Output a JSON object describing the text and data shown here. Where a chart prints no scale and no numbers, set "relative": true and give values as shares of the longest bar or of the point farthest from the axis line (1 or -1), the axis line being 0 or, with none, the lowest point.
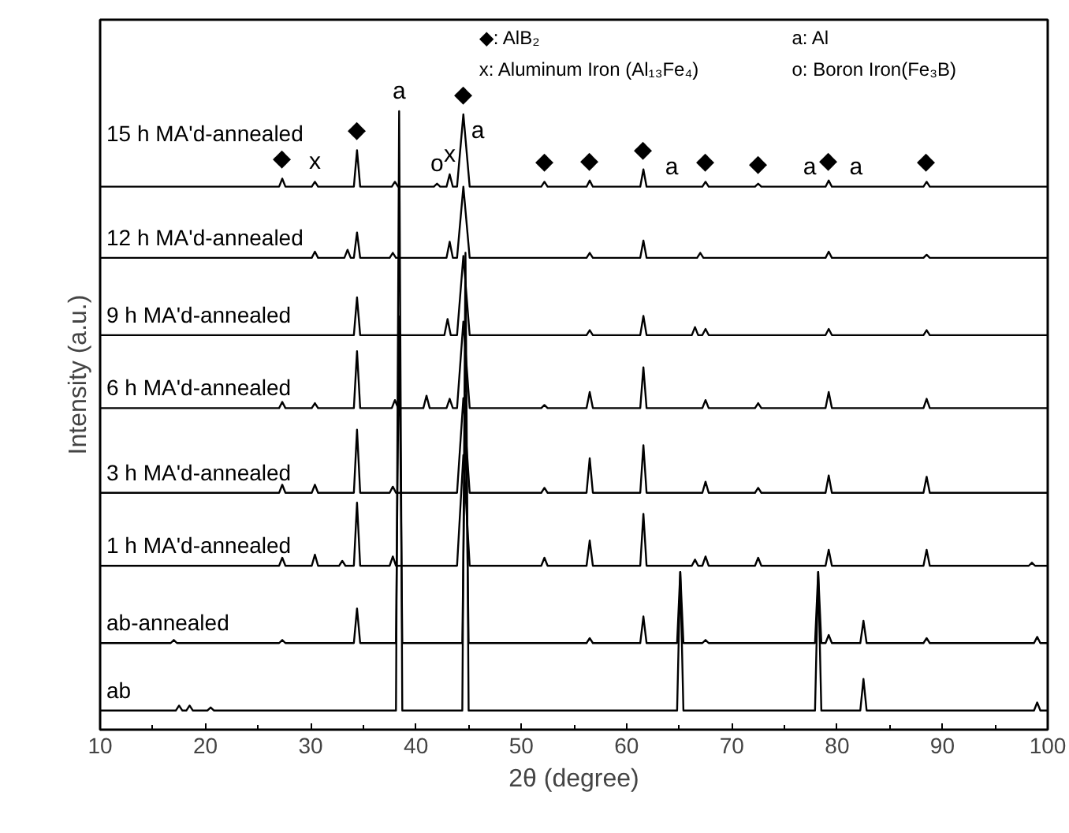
{
  "chart_data": {
    "type": "line",
    "relative": true,
    "xlabel": "2θ (degree)",
    "ylabel": "Intensity (a.u.)",
    "xlim": [
      10,
      100
    ],
    "xticks": [
      10,
      20,
      30,
      40,
      50,
      60,
      70,
      80,
      90,
      100
    ],
    "grid": false,
    "legend": false,
    "marker": "none",
    "line_style": "solid",
    "series": [
      {
        "name": "15 h MA'd-annealed",
        "color": "#000000",
        "x": [
          10,
          27,
          27.3,
          27.6,
          30.1,
          30.4,
          30.7,
          34.1,
          34.4,
          34.7,
          37.7,
          38,
          38.3,
          41.7,
          42,
          42.3,
          42.9,
          43.2,
          43.5,
          43.9,
          44.5,
          45.1,
          51.9,
          52.2,
          52.5,
          56.2,
          56.5,
          56.8,
          61.3,
          61.6,
          61.9,
          67.2,
          67.5,
          67.8,
          72.2,
          72.5,
          72.8,
          78.9,
          79.2,
          79.5,
          88.2,
          88.5,
          88.8,
          100
        ],
        "values": [
          0.878,
          0.878,
          0.891,
          0.878,
          0.878,
          0.886,
          0.878,
          0.878,
          0.937,
          0.878,
          0.878,
          0.886,
          0.878,
          0.878,
          0.883,
          0.878,
          0.878,
          0.898,
          0.878,
          0.878,
          0.995,
          0.878,
          0.878,
          0.886,
          0.878,
          0.878,
          0.888,
          0.878,
          0.878,
          0.906,
          0.878,
          0.878,
          0.886,
          0.878,
          0.878,
          0.883,
          0.878,
          0.878,
          0.888,
          0.878,
          0.878,
          0.886,
          0.878,
          0.878
        ]
      },
      {
        "name": "12 h MA'd-annealed",
        "color": "#000000",
        "x": [
          10,
          30.1,
          30.4,
          30.7,
          33.2,
          33.5,
          33.8,
          34.1,
          34.4,
          34.7,
          37.5,
          37.8,
          38.1,
          42.9,
          43.2,
          43.5,
          43.9,
          44.5,
          45.1,
          56.2,
          56.5,
          56.8,
          61.3,
          61.6,
          61.9,
          66.7,
          67,
          67.3,
          78.9,
          79.2,
          79.5,
          88.2,
          88.5,
          88.8,
          100
        ],
        "values": [
          0.763,
          0.763,
          0.773,
          0.763,
          0.763,
          0.776,
          0.763,
          0.763,
          0.804,
          0.763,
          0.763,
          0.771,
          0.763,
          0.763,
          0.789,
          0.763,
          0.763,
          0.878,
          0.763,
          0.763,
          0.771,
          0.763,
          0.763,
          0.791,
          0.763,
          0.763,
          0.771,
          0.763,
          0.763,
          0.773,
          0.763,
          0.763,
          0.768,
          0.763,
          0.763
        ]
      },
      {
        "name": "9 h MA'd-annealed",
        "color": "#000000",
        "x": [
          10,
          34.1,
          34.4,
          34.7,
          42.7,
          43,
          43.3,
          43.9,
          44.5,
          45.1,
          56.2,
          56.5,
          56.8,
          61.3,
          61.6,
          61.9,
          66.2,
          66.5,
          66.8,
          67.2,
          67.5,
          67.8,
          78.9,
          79.2,
          79.5,
          88.2,
          88.5,
          88.8,
          100
        ],
        "values": [
          0.638,
          0.638,
          0.699,
          0.638,
          0.638,
          0.664,
          0.638,
          0.638,
          0.766,
          0.638,
          0.638,
          0.646,
          0.638,
          0.638,
          0.669,
          0.638,
          0.638,
          0.651,
          0.638,
          0.638,
          0.648,
          0.638,
          0.638,
          0.648,
          0.638,
          0.638,
          0.646,
          0.638,
          0.638
        ]
      },
      {
        "name": "6 h MA'd-annealed",
        "color": "#000000",
        "x": [
          10,
          27,
          27.3,
          27.6,
          30.1,
          30.4,
          30.7,
          34.1,
          34.4,
          34.7,
          37.7,
          38,
          38.3,
          40.7,
          41,
          41.3,
          42.9,
          43.2,
          43.5,
          43.9,
          44.5,
          45.1,
          51.9,
          52.2,
          52.5,
          56.2,
          56.5,
          56.8,
          61.3,
          61.6,
          61.9,
          67.2,
          67.5,
          67.8,
          72.2,
          72.5,
          72.8,
          78.9,
          79.2,
          79.5,
          88.2,
          88.5,
          88.8,
          100
        ],
        "values": [
          0.52,
          0.52,
          0.53,
          0.52,
          0.52,
          0.528,
          0.52,
          0.52,
          0.612,
          0.52,
          0.52,
          0.533,
          0.52,
          0.52,
          0.54,
          0.52,
          0.52,
          0.535,
          0.52,
          0.52,
          0.66,
          0.52,
          0.52,
          0.525,
          0.52,
          0.52,
          0.546,
          0.52,
          0.52,
          0.586,
          0.52,
          0.52,
          0.533,
          0.52,
          0.52,
          0.528,
          0.52,
          0.52,
          0.546,
          0.52,
          0.52,
          0.535,
          0.52,
          0.52
        ]
      },
      {
        "name": "3 h MA'd-annealed",
        "color": "#000000",
        "x": [
          10,
          27,
          27.3,
          27.6,
          30.1,
          30.4,
          30.7,
          34.1,
          34.4,
          34.7,
          37.5,
          37.8,
          38.1,
          43.9,
          44.5,
          45.1,
          51.9,
          52.2,
          52.5,
          56.2,
          56.5,
          56.8,
          61.3,
          61.6,
          61.9,
          67.2,
          67.5,
          67.8,
          72.2,
          72.5,
          72.8,
          78.9,
          79.2,
          79.5,
          88.2,
          88.5,
          88.8,
          100
        ],
        "values": [
          0.383,
          0.383,
          0.396,
          0.383,
          0.383,
          0.396,
          0.383,
          0.383,
          0.485,
          0.383,
          0.383,
          0.393,
          0.383,
          0.383,
          0.536,
          0.383,
          0.383,
          0.391,
          0.383,
          0.383,
          0.439,
          0.383,
          0.383,
          0.46,
          0.383,
          0.383,
          0.401,
          0.383,
          0.383,
          0.391,
          0.383,
          0.383,
          0.411,
          0.383,
          0.383,
          0.409,
          0.383,
          0.383
        ]
      },
      {
        "name": "1 h MA'd-annealed",
        "color": "#000000",
        "x": [
          10,
          27,
          27.3,
          27.6,
          30.1,
          30.4,
          30.7,
          32.7,
          33,
          33.3,
          34.1,
          34.4,
          34.7,
          37.5,
          37.8,
          38.1,
          43.9,
          44.5,
          45.1,
          51.9,
          52.2,
          52.5,
          56.2,
          56.5,
          56.8,
          61.3,
          61.6,
          61.9,
          66.2,
          66.5,
          66.8,
          67.2,
          67.5,
          67.8,
          72.2,
          72.5,
          72.8,
          78.9,
          79.2,
          79.5,
          88.2,
          88.5,
          88.8,
          98.2,
          98.5,
          98.8,
          100
        ],
        "values": [
          0.265,
          0.265,
          0.278,
          0.265,
          0.265,
          0.283,
          0.265,
          0.265,
          0.273,
          0.265,
          0.265,
          0.367,
          0.265,
          0.265,
          0.28,
          0.265,
          0.265,
          0.444,
          0.265,
          0.265,
          0.278,
          0.265,
          0.265,
          0.306,
          0.265,
          0.265,
          0.349,
          0.265,
          0.265,
          0.275,
          0.265,
          0.265,
          0.28,
          0.265,
          0.265,
          0.278,
          0.265,
          0.265,
          0.291,
          0.265,
          0.265,
          0.291,
          0.265,
          0.265,
          0.27,
          0.265,
          0.265
        ]
      },
      {
        "name": "ab-annealed",
        "color": "#000000",
        "x": [
          10,
          16.7,
          17,
          17.3,
          27,
          27.3,
          27.6,
          34.1,
          34.4,
          34.7,
          38.1,
          38.4,
          38.7,
          44.4,
          44.7,
          45,
          56.2,
          56.5,
          56.8,
          61.3,
          61.6,
          61.9,
          64.8,
          65.1,
          65.4,
          67.2,
          67.5,
          67.8,
          77.9,
          78.2,
          78.5,
          78.9,
          79.2,
          79.5,
          82.2,
          82.5,
          82.8,
          88.2,
          88.5,
          88.8,
          98.7,
          99,
          99.3,
          100
        ],
        "values": [
          0.14,
          0.14,
          0.145,
          0.14,
          0.14,
          0.145,
          0.14,
          0.14,
          0.196,
          0.14,
          0.14,
          0.668,
          0.14,
          0.14,
          0.541,
          0.14,
          0.14,
          0.148,
          0.14,
          0.14,
          0.183,
          0.14,
          0.14,
          0.255,
          0.14,
          0.14,
          0.145,
          0.14,
          0.14,
          0.255,
          0.14,
          0.14,
          0.153,
          0.14,
          0.14,
          0.176,
          0.14,
          0.14,
          0.148,
          0.14,
          0.14,
          0.15,
          0.14,
          0.14
        ]
      },
      {
        "name": "ab",
        "color": "#000000",
        "x": [
          10,
          17.2,
          17.5,
          17.8,
          18.2,
          18.5,
          18.8,
          20.2,
          20.5,
          20.8,
          38.1,
          38.4,
          38.7,
          44.4,
          44.7,
          45,
          64.8,
          65.1,
          65.4,
          77.9,
          78.2,
          78.5,
          82.2,
          82.5,
          82.8,
          98.7,
          99,
          99.3,
          100
        ],
        "values": [
          0.031,
          0.031,
          0.039,
          0.031,
          0.031,
          0.039,
          0.031,
          0.031,
          0.036,
          0.031,
          0.031,
          1.0,
          0.031,
          0.031,
          0.771,
          0.031,
          0.031,
          0.255,
          0.031,
          0.031,
          0.255,
          0.031,
          0.031,
          0.082,
          0.031,
          0.031,
          0.044,
          0.031,
          0.031
        ]
      }
    ],
    "annotations": [
      "◆: AlB₂",
      "a: Al",
      "x: Aluminum Iron (Al₁₃Fe₄)",
      "o: Boron Iron(Fe₃B)",
      {
        "text": "◆",
        "x": 27.3,
        "y": 0.891
      },
      {
        "text": "x",
        "x": 30.4,
        "y": 0.886
      },
      {
        "text": "◆",
        "x": 34.4,
        "y": 0.937
      },
      {
        "text": "a",
        "x": 38.4,
        "y": 1.0
      },
      {
        "text": "o",
        "x": 42,
        "y": 0.883
      },
      {
        "text": "x",
        "x": 43.2,
        "y": 0.898
      },
      {
        "text": "◆",
        "x": 44.5,
        "y": 0.995
      },
      {
        "text": "a",
        "x": 44.5,
        "y": 0.995
      },
      {
        "text": "◆",
        "x": 52.2,
        "y": 0.886
      },
      {
        "text": "◆",
        "x": 56.5,
        "y": 0.888
      },
      {
        "text": "◆",
        "x": 61.6,
        "y": 0.906
      },
      {
        "text": "a",
        "x": 64.3,
        "y": 0.878
      },
      {
        "text": "◆",
        "x": 67.5,
        "y": 0.886
      },
      {
        "text": "◆",
        "x": 72.5,
        "y": 0.883
      },
      {
        "text": "a",
        "x": 77.4,
        "y": 0.878
      },
      {
        "text": "◆",
        "x": 79.2,
        "y": 0.888
      },
      {
        "text": "a",
        "x": 81.8,
        "y": 0.878
      },
      {
        "text": "◆",
        "x": 88.5,
        "y": 0.886
      }
    ]
  }
}
